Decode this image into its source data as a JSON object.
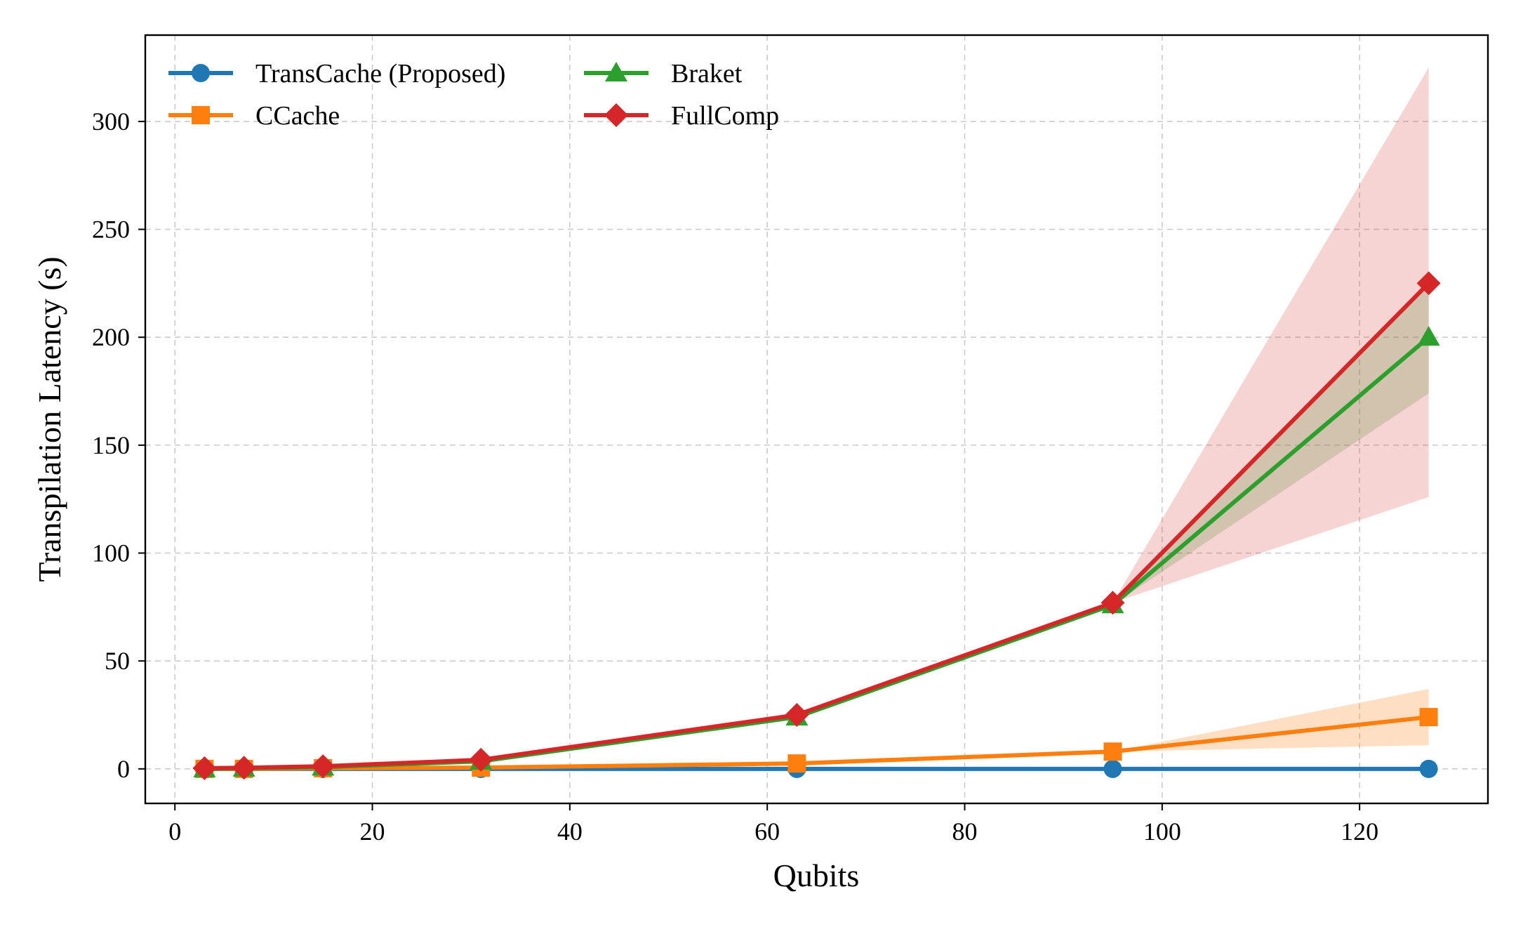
{
  "chart_data": {
    "type": "line",
    "xlabel": "Qubits",
    "ylabel": "Transpilation Latency (s)",
    "xlim": [
      -3,
      133
    ],
    "ylim": [
      -16,
      340
    ],
    "xticks": [
      0,
      20,
      40,
      60,
      80,
      100,
      120
    ],
    "yticks": [
      0,
      50,
      100,
      150,
      200,
      250,
      300
    ],
    "grid": true,
    "legend_position": "top-left",
    "x": [
      3,
      7,
      15,
      31,
      63,
      95,
      127
    ],
    "series": [
      {
        "name": "TransCache (Proposed)",
        "color": "#1f77b4",
        "marker": "circle",
        "values": [
          0,
          0,
          0,
          0,
          0,
          0,
          0
        ]
      },
      {
        "name": "CCache",
        "color": "#ff7f0e",
        "marker": "square",
        "values": [
          0,
          0,
          0.3,
          0.6,
          2.5,
          8,
          24
        ],
        "band_lower": [
          0,
          0,
          0.3,
          0.6,
          2.5,
          8,
          11
        ],
        "band_upper": [
          0,
          0,
          0.3,
          0.6,
          2.5,
          8,
          37
        ]
      },
      {
        "name": "Braket",
        "color": "#2ca02c",
        "marker": "triangle",
        "values": [
          0,
          0.3,
          0.8,
          3.5,
          24,
          76,
          200
        ],
        "band_lower": [
          0,
          0.3,
          0.8,
          3.5,
          24,
          76,
          174
        ],
        "band_upper": [
          0,
          0.3,
          0.8,
          3.5,
          24,
          76,
          226
        ]
      },
      {
        "name": "FullComp",
        "color": "#d62728",
        "marker": "diamond",
        "values": [
          0.3,
          0.5,
          1.2,
          4.2,
          25,
          77,
          225
        ],
        "band_lower": [
          0.3,
          0.5,
          1.2,
          4.2,
          25,
          77,
          126
        ],
        "band_upper": [
          0.3,
          0.5,
          1.2,
          4.2,
          25,
          77,
          325
        ]
      }
    ]
  }
}
